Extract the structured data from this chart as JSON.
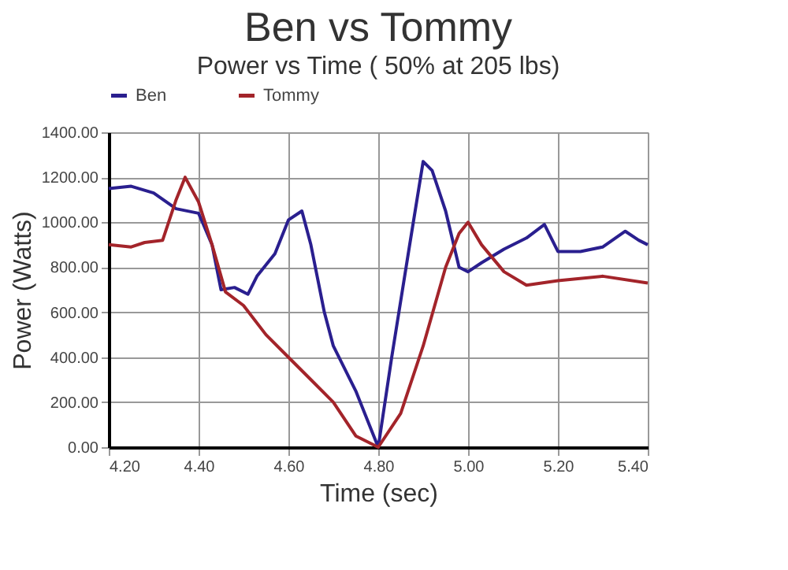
{
  "chart_data": {
    "type": "line",
    "title": "Ben vs Tommy",
    "subtitle": "Power vs Time ( 50% at 205 lbs)",
    "xlabel": "Time (sec)",
    "ylabel": "Power (Watts)",
    "xlim": [
      4.2,
      5.4
    ],
    "ylim": [
      0,
      1400
    ],
    "xticks": [
      {
        "value": 4.2,
        "label": "4.20"
      },
      {
        "value": 4.4,
        "label": "4.40"
      },
      {
        "value": 4.6,
        "label": "4.60"
      },
      {
        "value": 4.8,
        "label": "4.80"
      },
      {
        "value": 5.0,
        "label": "5.00"
      },
      {
        "value": 5.2,
        "label": "5.20"
      },
      {
        "value": 5.4,
        "label": "5.40"
      }
    ],
    "yticks": [
      {
        "value": 0,
        "label": "0.00"
      },
      {
        "value": 200,
        "label": "200.00"
      },
      {
        "value": 400,
        "label": "400.00"
      },
      {
        "value": 600,
        "label": "600.00"
      },
      {
        "value": 800,
        "label": "800.00"
      },
      {
        "value": 1000,
        "label": "1000.00"
      },
      {
        "value": 1200,
        "label": "1200.00"
      },
      {
        "value": 1400,
        "label": "1400.00"
      }
    ],
    "grid": true,
    "legend": "top",
    "marker": "none",
    "line_style": "solid",
    "series": [
      {
        "name": "Ben",
        "color": "#2a1f8f",
        "x": [
          4.2,
          4.25,
          4.3,
          4.35,
          4.4,
          4.43,
          4.45,
          4.48,
          4.51,
          4.53,
          4.57,
          4.6,
          4.63,
          4.65,
          4.68,
          4.7,
          4.75,
          4.78,
          4.8,
          4.83,
          4.87,
          4.9,
          4.92,
          4.95,
          4.98,
          5.0,
          5.03,
          5.08,
          5.13,
          5.17,
          5.2,
          5.25,
          5.3,
          5.35,
          5.38,
          5.4
        ],
        "values": [
          1150,
          1160,
          1130,
          1060,
          1040,
          900,
          700,
          710,
          680,
          760,
          860,
          1010,
          1050,
          900,
          600,
          450,
          250,
          100,
          0,
          400,
          900,
          1270,
          1230,
          1050,
          800,
          780,
          820,
          880,
          930,
          990,
          870,
          870,
          890,
          960,
          920,
          900
        ]
      },
      {
        "name": "Tommy",
        "color": "#a3242a",
        "x": [
          4.2,
          4.25,
          4.28,
          4.32,
          4.35,
          4.37,
          4.4,
          4.43,
          4.46,
          4.5,
          4.55,
          4.6,
          4.65,
          4.7,
          4.75,
          4.8,
          4.85,
          4.9,
          4.95,
          4.98,
          5.0,
          5.03,
          5.08,
          5.13,
          5.2,
          5.3,
          5.4
        ],
        "values": [
          900,
          890,
          910,
          920,
          1100,
          1200,
          1090,
          900,
          690,
          630,
          500,
          400,
          300,
          200,
          50,
          0,
          150,
          450,
          800,
          950,
          1000,
          900,
          780,
          720,
          740,
          760,
          730
        ]
      }
    ]
  }
}
